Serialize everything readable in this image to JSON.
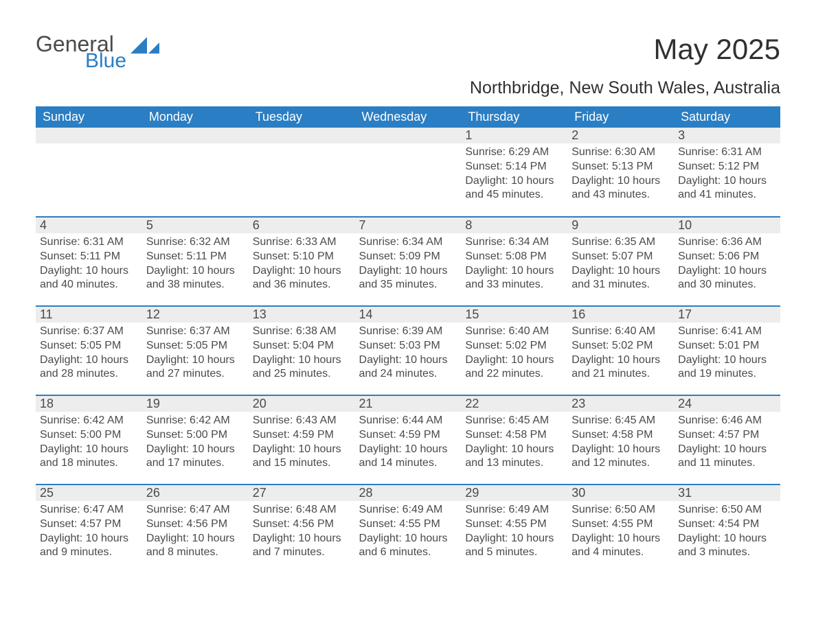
{
  "brand": {
    "general": "General",
    "blue": "Blue"
  },
  "title": "May 2025",
  "subtitle": "Northbridge, New South Wales, Australia",
  "colors": {
    "header_bg": "#2a7ec4",
    "header_text": "#ffffff",
    "daynum_bg": "#ededed",
    "text": "#4a4a4a",
    "page_bg": "#ffffff",
    "row_divider": "#2a7ec4"
  },
  "weekdays": [
    "Sunday",
    "Monday",
    "Tuesday",
    "Wednesday",
    "Thursday",
    "Friday",
    "Saturday"
  ],
  "weeks": [
    [
      null,
      null,
      null,
      null,
      {
        "d": "1",
        "sunrise": "6:29 AM",
        "sunset": "5:14 PM",
        "daylight": "10 hours and 45 minutes."
      },
      {
        "d": "2",
        "sunrise": "6:30 AM",
        "sunset": "5:13 PM",
        "daylight": "10 hours and 43 minutes."
      },
      {
        "d": "3",
        "sunrise": "6:31 AM",
        "sunset": "5:12 PM",
        "daylight": "10 hours and 41 minutes."
      }
    ],
    [
      {
        "d": "4",
        "sunrise": "6:31 AM",
        "sunset": "5:11 PM",
        "daylight": "10 hours and 40 minutes."
      },
      {
        "d": "5",
        "sunrise": "6:32 AM",
        "sunset": "5:11 PM",
        "daylight": "10 hours and 38 minutes."
      },
      {
        "d": "6",
        "sunrise": "6:33 AM",
        "sunset": "5:10 PM",
        "daylight": "10 hours and 36 minutes."
      },
      {
        "d": "7",
        "sunrise": "6:34 AM",
        "sunset": "5:09 PM",
        "daylight": "10 hours and 35 minutes."
      },
      {
        "d": "8",
        "sunrise": "6:34 AM",
        "sunset": "5:08 PM",
        "daylight": "10 hours and 33 minutes."
      },
      {
        "d": "9",
        "sunrise": "6:35 AM",
        "sunset": "5:07 PM",
        "daylight": "10 hours and 31 minutes."
      },
      {
        "d": "10",
        "sunrise": "6:36 AM",
        "sunset": "5:06 PM",
        "daylight": "10 hours and 30 minutes."
      }
    ],
    [
      {
        "d": "11",
        "sunrise": "6:37 AM",
        "sunset": "5:05 PM",
        "daylight": "10 hours and 28 minutes."
      },
      {
        "d": "12",
        "sunrise": "6:37 AM",
        "sunset": "5:05 PM",
        "daylight": "10 hours and 27 minutes."
      },
      {
        "d": "13",
        "sunrise": "6:38 AM",
        "sunset": "5:04 PM",
        "daylight": "10 hours and 25 minutes."
      },
      {
        "d": "14",
        "sunrise": "6:39 AM",
        "sunset": "5:03 PM",
        "daylight": "10 hours and 24 minutes."
      },
      {
        "d": "15",
        "sunrise": "6:40 AM",
        "sunset": "5:02 PM",
        "daylight": "10 hours and 22 minutes."
      },
      {
        "d": "16",
        "sunrise": "6:40 AM",
        "sunset": "5:02 PM",
        "daylight": "10 hours and 21 minutes."
      },
      {
        "d": "17",
        "sunrise": "6:41 AM",
        "sunset": "5:01 PM",
        "daylight": "10 hours and 19 minutes."
      }
    ],
    [
      {
        "d": "18",
        "sunrise": "6:42 AM",
        "sunset": "5:00 PM",
        "daylight": "10 hours and 18 minutes."
      },
      {
        "d": "19",
        "sunrise": "6:42 AM",
        "sunset": "5:00 PM",
        "daylight": "10 hours and 17 minutes."
      },
      {
        "d": "20",
        "sunrise": "6:43 AM",
        "sunset": "4:59 PM",
        "daylight": "10 hours and 15 minutes."
      },
      {
        "d": "21",
        "sunrise": "6:44 AM",
        "sunset": "4:59 PM",
        "daylight": "10 hours and 14 minutes."
      },
      {
        "d": "22",
        "sunrise": "6:45 AM",
        "sunset": "4:58 PM",
        "daylight": "10 hours and 13 minutes."
      },
      {
        "d": "23",
        "sunrise": "6:45 AM",
        "sunset": "4:58 PM",
        "daylight": "10 hours and 12 minutes."
      },
      {
        "d": "24",
        "sunrise": "6:46 AM",
        "sunset": "4:57 PM",
        "daylight": "10 hours and 11 minutes."
      }
    ],
    [
      {
        "d": "25",
        "sunrise": "6:47 AM",
        "sunset": "4:57 PM",
        "daylight": "10 hours and 9 minutes."
      },
      {
        "d": "26",
        "sunrise": "6:47 AM",
        "sunset": "4:56 PM",
        "daylight": "10 hours and 8 minutes."
      },
      {
        "d": "27",
        "sunrise": "6:48 AM",
        "sunset": "4:56 PM",
        "daylight": "10 hours and 7 minutes."
      },
      {
        "d": "28",
        "sunrise": "6:49 AM",
        "sunset": "4:55 PM",
        "daylight": "10 hours and 6 minutes."
      },
      {
        "d": "29",
        "sunrise": "6:49 AM",
        "sunset": "4:55 PM",
        "daylight": "10 hours and 5 minutes."
      },
      {
        "d": "30",
        "sunrise": "6:50 AM",
        "sunset": "4:55 PM",
        "daylight": "10 hours and 4 minutes."
      },
      {
        "d": "31",
        "sunrise": "6:50 AM",
        "sunset": "4:54 PM",
        "daylight": "10 hours and 3 minutes."
      }
    ]
  ],
  "labels": {
    "sunrise": "Sunrise: ",
    "sunset": "Sunset: ",
    "daylight": "Daylight: "
  }
}
